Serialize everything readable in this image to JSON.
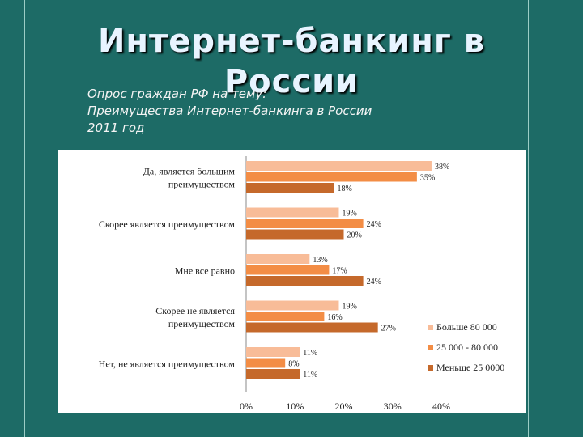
{
  "slide": {
    "title_line1": "Интернет-банкинг в",
    "title_line2": "России",
    "subtitle_line1": "Опрос граждан РФ на тему:",
    "subtitle_line2": "Преимущества Интернет-банкинга в России",
    "subtitle_line3": "2011 год"
  },
  "colors": {
    "background": "#1d6b66",
    "series": [
      "#f8bc98",
      "#f38d45",
      "#c5692b"
    ]
  },
  "chart_data": {
    "type": "bar",
    "orientation": "horizontal",
    "categories": [
      [
        "Да, является большим",
        "преимуществом"
      ],
      [
        "Скорее является преимуществом"
      ],
      [
        "Мне все равно"
      ],
      [
        "Скорее не является",
        "преимуществом"
      ],
      [
        "Нет, не является преимуществом"
      ]
    ],
    "series": [
      {
        "name": "Больше 80 000",
        "values": [
          38,
          19,
          13,
          19,
          11
        ]
      },
      {
        "name": "25 000 - 80 000",
        "values": [
          35,
          24,
          17,
          16,
          8
        ]
      },
      {
        "name": "Меньше 25 0000",
        "values": [
          18,
          20,
          24,
          27,
          11
        ]
      }
    ],
    "xlim": [
      0,
      40
    ],
    "xticks": [
      "0%",
      "10%",
      "20%",
      "30%",
      "40%"
    ],
    "value_suffix": "%",
    "legend_position": "bottom-right",
    "grid": false
  }
}
